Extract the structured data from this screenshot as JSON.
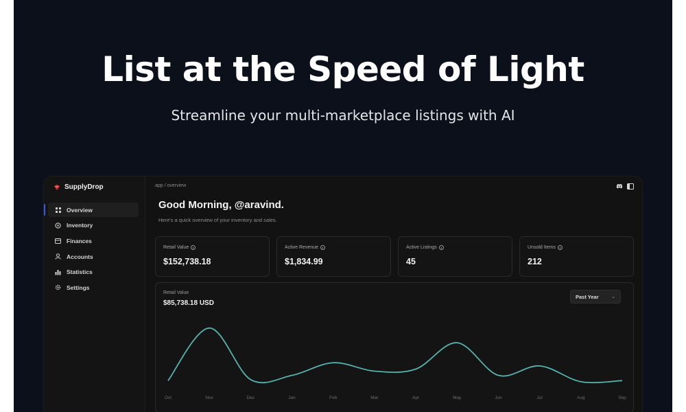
{
  "hero": {
    "title": "List at the Speed of Light",
    "subtitle": "Streamline your multi-marketplace listings with AI"
  },
  "app": {
    "brand": "SupplyDrop",
    "breadcrumb": "app / overview",
    "sidebar": {
      "items": [
        {
          "label": "Overview",
          "icon": "grid-icon",
          "active": true
        },
        {
          "label": "Inventory",
          "icon": "box-icon",
          "active": false
        },
        {
          "label": "Finances",
          "icon": "card-icon",
          "active": false
        },
        {
          "label": "Accounts",
          "icon": "user-icon",
          "active": false
        },
        {
          "label": "Statistics",
          "icon": "chart-icon",
          "active": false
        },
        {
          "label": "Settings",
          "icon": "gear-icon",
          "active": false
        }
      ]
    },
    "greeting": "Good Morning, @aravind.",
    "greeting_sub": "Here's a quick overview of your inventory and sales.",
    "stats": [
      {
        "label": "Retail Value",
        "value": "$152,738.18"
      },
      {
        "label": "Active Revenue",
        "value": "$1,834.99"
      },
      {
        "label": "Active Listings",
        "value": "45"
      },
      {
        "label": "Unsold Items",
        "value": "212"
      }
    ],
    "chart": {
      "label": "Retail Value",
      "value": "$85,738.18 USD",
      "period": "Past Year"
    }
  },
  "colors": {
    "page_bg": "#0c101a",
    "app_bg": "#121212",
    "accent_line": "#56b3ad",
    "brand_logo": "#d62f2f"
  },
  "chart_data": {
    "type": "line",
    "title": "Retail Value",
    "categories": [
      "Oct",
      "Nov",
      "Dec",
      "Jan",
      "Feb",
      "Mar",
      "Apr",
      "May",
      "Jun",
      "Jul",
      "Aug",
      "Sep"
    ],
    "series": [
      {
        "values": [
          5,
          55,
          6,
          10,
          22,
          14,
          16,
          41,
          10,
          19,
          4,
          5
        ]
      }
    ],
    "xlabel": "",
    "ylabel": "",
    "grid": false,
    "smooth": true
  }
}
